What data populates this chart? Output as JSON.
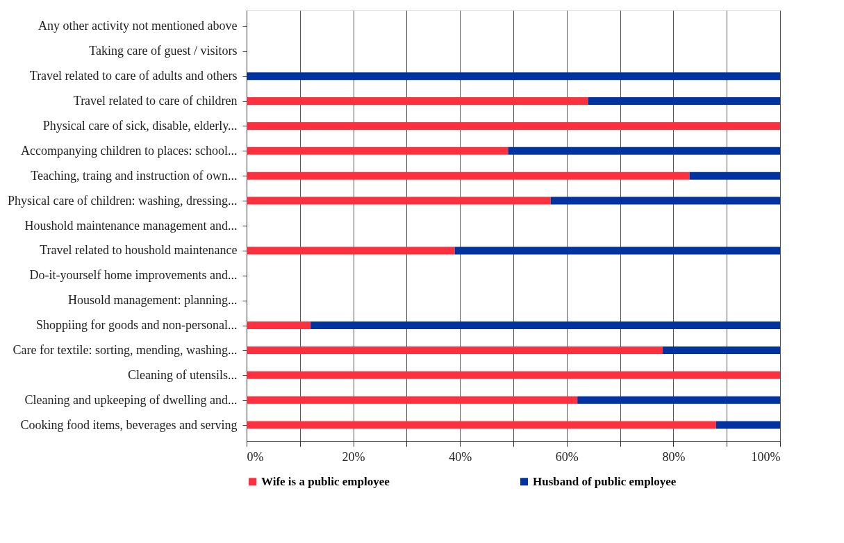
{
  "chart_data": {
    "type": "bar",
    "orientation": "horizontal",
    "stacked": true,
    "categories": [
      "Any other activity not mentioned above",
      "Taking care of guest / visitors",
      "Travel related to care of adults and others",
      "Travel related to care of  children",
      "Physical care of sick, disable, elderly...",
      "Accompanying children to places: school...",
      "Teaching, traing and instruction of own...",
      "Physical care of children: washing, dressing...",
      "Houshold maintenance management and...",
      "Travel related to houshold maintenance",
      "Do-it-yourself home improvements and...",
      "Housold management: planning...",
      "Shoppiing for goods and non-personal...",
      "Care for textile: sorting, mending, washing...",
      "Cleaning of utensils...",
      "Cleaning and upkeeping of dwelling and...",
      "Cooking food items, beverages and serving"
    ],
    "series": [
      {
        "name": "Wife is a  public employee",
        "color": "#fc3140",
        "values": [
          null,
          null,
          0,
          64,
          100,
          49,
          83,
          57,
          null,
          39,
          null,
          null,
          12,
          78,
          100,
          62,
          88
        ]
      },
      {
        "name": "Husband of public employee",
        "color": "#0033a0",
        "values": [
          null,
          null,
          100,
          36,
          0,
          51,
          17,
          43,
          null,
          61,
          null,
          null,
          88,
          22,
          0,
          38,
          12
        ]
      }
    ],
    "xlim": [
      0,
      100
    ],
    "xticks": [
      {
        "value": 0,
        "label": "0%"
      },
      {
        "value": 10,
        "label": null
      },
      {
        "value": 20,
        "label": "20%"
      },
      {
        "value": 30,
        "label": null
      },
      {
        "value": 40,
        "label": "40%"
      },
      {
        "value": 50,
        "label": null
      },
      {
        "value": 60,
        "label": "60%"
      },
      {
        "value": 70,
        "label": null
      },
      {
        "value": 80,
        "label": "80%"
      },
      {
        "value": 90,
        "label": null
      },
      {
        "value": 100,
        "label": "100%"
      }
    ],
    "grid": "x",
    "legend": "bottom"
  }
}
